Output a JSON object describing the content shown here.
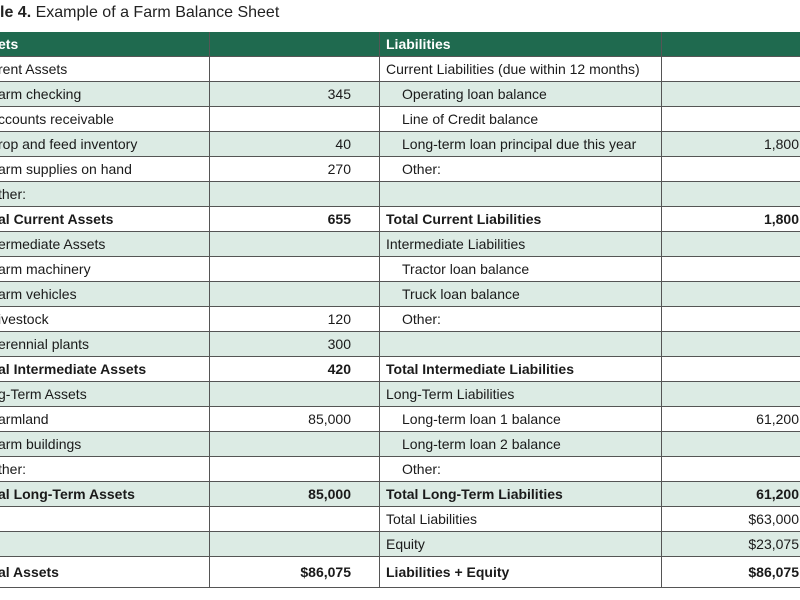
{
  "title": {
    "label": "le 4.",
    "text": "Example of a Farm Balance Sheet"
  },
  "table": {
    "header": [
      "ets",
      null,
      "Liabilities",
      null
    ],
    "rows": [
      [
        "rent Assets",
        null,
        "Current Liabilities (due within 12 months)",
        null
      ],
      [
        "arm checking",
        "345",
        "Operating loan balance",
        null
      ],
      [
        "ccounts receivable",
        null,
        "Line of Credit balance",
        null
      ],
      [
        "rop and feed inventory",
        "40",
        "Long-term loan principal due this year",
        "1,800"
      ],
      [
        "arm supplies on hand",
        "270",
        "Other:",
        null
      ],
      [
        "ther:",
        null,
        null,
        null
      ],
      [
        "al Current Assets",
        "655",
        "Total Current Liabilities",
        "1,800"
      ],
      [
        "ermediate Assets",
        null,
        "Intermediate Liabilities",
        null
      ],
      [
        "arm machinery",
        null,
        "Tractor loan balance",
        null
      ],
      [
        "arm vehicles",
        null,
        "Truck loan balance",
        null
      ],
      [
        "ivestock",
        "120",
        "Other:",
        null
      ],
      [
        "erennial plants",
        "300",
        null,
        null
      ],
      [
        "al Intermediate Assets",
        "420",
        "Total Intermediate Liabilities",
        null
      ],
      [
        "g-Term Assets",
        null,
        "Long-Term Liabilities",
        null
      ],
      [
        "armland",
        "85,000",
        "Long-term loan 1 balance",
        "61,200"
      ],
      [
        "arm buildings",
        null,
        "Long-term loan 2 balance",
        null
      ],
      [
        "ther:",
        null,
        "Other:",
        null
      ],
      [
        "al Long-Term Assets",
        "85,000",
        "Total Long-Term Liabilities",
        "61,200"
      ],
      [
        null,
        null,
        "Total Liabilities",
        "$63,000"
      ],
      [
        null,
        null,
        "Equity",
        "$23,075"
      ],
      [
        "al Assets",
        "$86,075",
        "Liabilities + Equity",
        "$86,075"
      ]
    ]
  }
}
